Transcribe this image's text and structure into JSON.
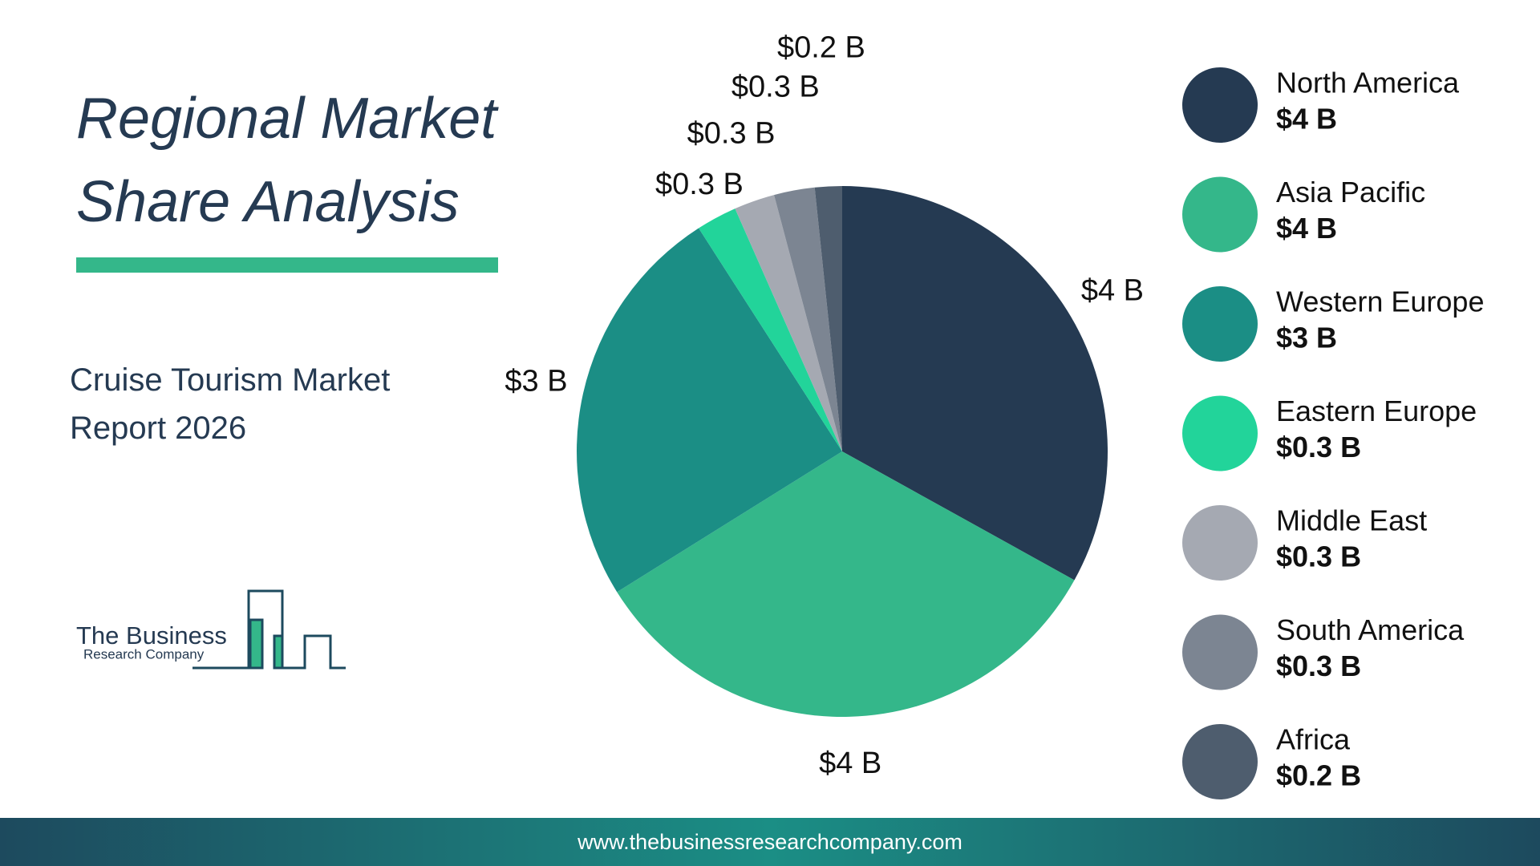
{
  "chart_data": {
    "type": "pie",
    "title": "Regional Market Share Analysis",
    "subtitle": "Cruise Tourism Market Report 2026",
    "categories": [
      "North America",
      "Asia Pacific",
      "Western Europe",
      "Eastern Europe",
      "Middle East",
      "South America",
      "Africa"
    ],
    "values": [
      4,
      4,
      3,
      0.3,
      0.3,
      0.3,
      0.2
    ],
    "value_labels": [
      "$4 B",
      "$4 B",
      "$3 B",
      "$0.3 B",
      "$0.3 B",
      "$0.3 B",
      "$0.2 B"
    ],
    "colors": [
      "#253a52",
      "#34b78a",
      "#1b8e85",
      "#22d49a",
      "#a5a9b2",
      "#7c8592",
      "#4e5d6e"
    ],
    "legend": "right"
  },
  "logo": {
    "line1": "The Business",
    "line2": "Research Company"
  },
  "footer": "www.thebusinessresearchcompany.com"
}
